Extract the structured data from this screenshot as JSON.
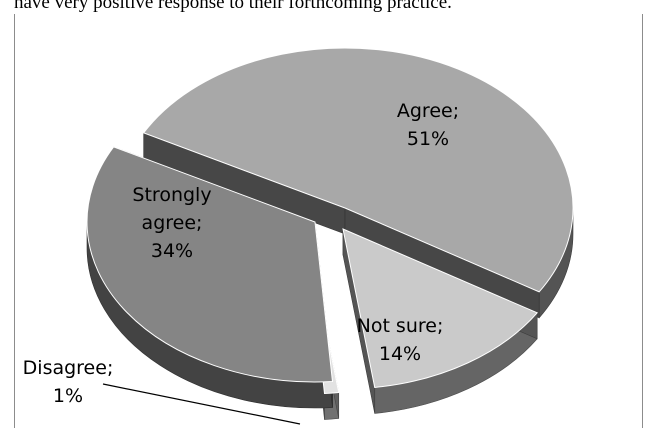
{
  "intro_text": "have very positive response to their forthcoming practice.",
  "chart_data": {
    "type": "pie",
    "title": "",
    "style": "3d-exploded",
    "slices": [
      {
        "label_lines": [
          "Agree;",
          "51%"
        ],
        "value": 51,
        "color": "#a8a8a8"
      },
      {
        "label_lines": [
          "Not sure;",
          "14%"
        ],
        "value": 14,
        "color": "#cacaca"
      },
      {
        "label_lines": [
          "Disagree;",
          "1%"
        ],
        "value": 1,
        "color": "#e2e2e2"
      },
      {
        "label_lines": [
          "Strongly",
          "agree;",
          "34%"
        ],
        "value": 34,
        "color": "#858585"
      }
    ]
  }
}
